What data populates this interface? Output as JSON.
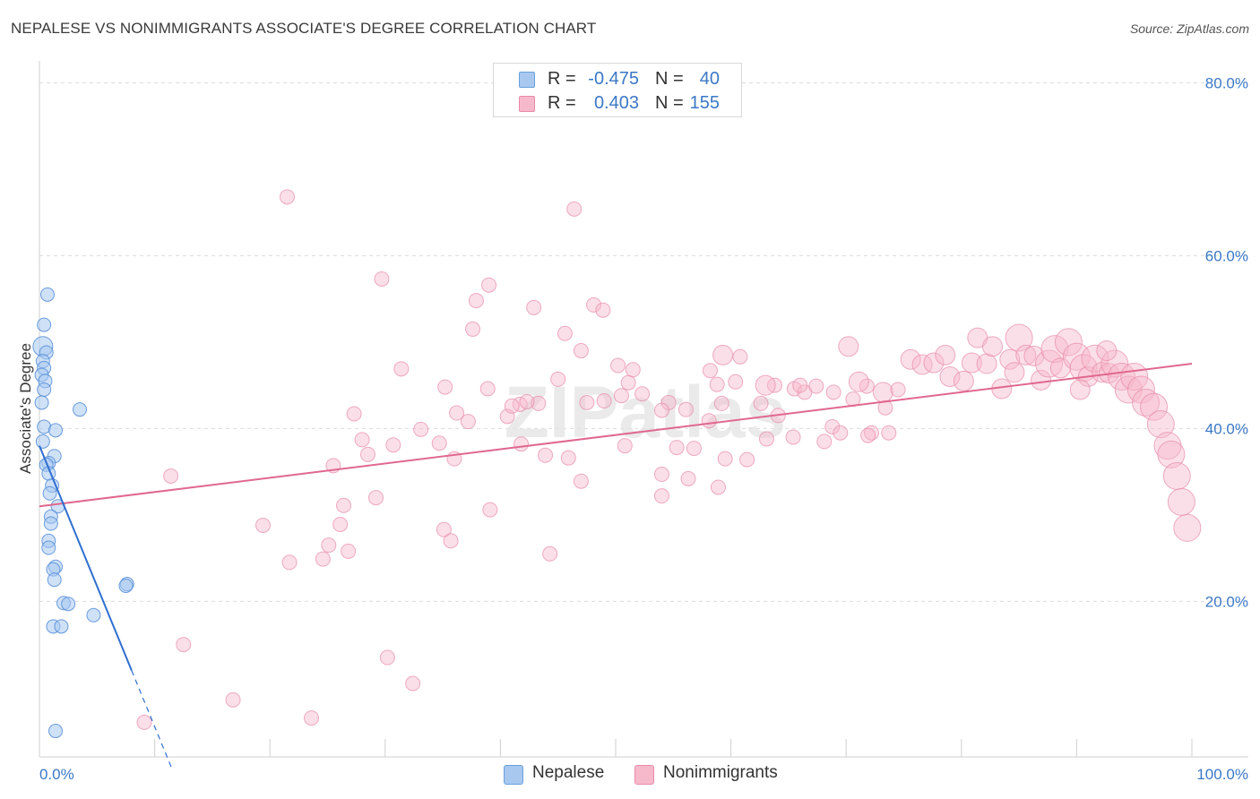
{
  "title": "NEPALESE VS NONIMMIGRANTS ASSOCIATE'S DEGREE CORRELATION CHART",
  "source": "Source: ZipAtlas.com",
  "watermark": "ZIPatlas",
  "legend": {
    "rows": [
      {
        "r_label": "R =",
        "r_value": "-0.475",
        "n_label": "N =",
        "n_value": "40",
        "color": "#a8c8f0",
        "border": "#6a9fdc"
      },
      {
        "r_label": "R =",
        "r_value": "0.403",
        "n_label": "N =",
        "n_value": "155",
        "color": "#f6b9cb",
        "border": "#e98aa8"
      }
    ]
  },
  "bottom_legend": {
    "nepalese": "Nepalese",
    "nonimmigrants": "Nonimmigrants"
  },
  "colors": {
    "nepalese_fill": "#a8c8f0",
    "nepalese_stroke": "#4a86d6",
    "nepalese_line": "#2f6fd0",
    "non_fill": "#f6b9cb",
    "non_stroke": "#e78aa8",
    "non_line": "#e0688f",
    "axis_label": "#3b78c6",
    "grid": "#dcdcdc"
  },
  "chart_data": {
    "type": "scatter",
    "title": "NEPALESE VS NONIMMIGRANTS ASSOCIATE'S DEGREE CORRELATION CHART",
    "xlabel": "",
    "ylabel": "Associate's Degree",
    "x_tick_labels": [
      "0.0%",
      "100.0%"
    ],
    "y_tick_labels": [
      "20.0%",
      "40.0%",
      "60.0%",
      "80.0%"
    ],
    "xlim": [
      0,
      100
    ],
    "ylim": [
      2,
      82
    ],
    "grid": true,
    "legend_position": "top-center",
    "series": [
      {
        "name": "Nepalese",
        "r": -0.475,
        "n": 40,
        "trend": {
          "x0": 0.0,
          "y0": 38.0,
          "x1": 8.0,
          "y1": 12.0,
          "dashed_to_x": 11.5
        },
        "points": [
          [
            0.7,
            55.5,
            1
          ],
          [
            0.4,
            52.0,
            1
          ],
          [
            0.3,
            49.5,
            2
          ],
          [
            0.6,
            48.8,
            1
          ],
          [
            0.3,
            47.8,
            1
          ],
          [
            0.4,
            47.0,
            1
          ],
          [
            0.2,
            46.2,
            1
          ],
          [
            0.5,
            45.5,
            1
          ],
          [
            0.4,
            44.5,
            1
          ],
          [
            0.2,
            43.0,
            1
          ],
          [
            3.5,
            42.2,
            1
          ],
          [
            0.4,
            40.2,
            1
          ],
          [
            1.4,
            39.8,
            1
          ],
          [
            0.3,
            38.5,
            1
          ],
          [
            1.3,
            36.8,
            1
          ],
          [
            0.8,
            36.0,
            1
          ],
          [
            0.6,
            35.8,
            1
          ],
          [
            0.8,
            34.8,
            1
          ],
          [
            1.1,
            33.4,
            1
          ],
          [
            0.9,
            32.5,
            1
          ],
          [
            1.6,
            31.0,
            1
          ],
          [
            1.0,
            29.8,
            1
          ],
          [
            1.0,
            29.0,
            1
          ],
          [
            0.8,
            27.0,
            1
          ],
          [
            0.8,
            26.2,
            1
          ],
          [
            1.4,
            24.0,
            1
          ],
          [
            1.2,
            23.7,
            1
          ],
          [
            1.3,
            22.5,
            1
          ],
          [
            7.6,
            22.0,
            1
          ],
          [
            7.5,
            21.8,
            1
          ],
          [
            2.1,
            19.8,
            1
          ],
          [
            2.5,
            19.7,
            1
          ],
          [
            4.7,
            18.4,
            1
          ],
          [
            1.2,
            17.1,
            1
          ],
          [
            1.9,
            17.1,
            1
          ],
          [
            1.4,
            5.0,
            1
          ]
        ]
      },
      {
        "name": "Nonimmigrants",
        "r": 0.403,
        "n": 155,
        "trend": {
          "x0": 0.0,
          "y0": 31.0,
          "x1": 100.0,
          "y1": 47.5
        },
        "points": [
          [
            21.5,
            66.8,
            1
          ],
          [
            46.4,
            65.4,
            1
          ],
          [
            29.7,
            57.3,
            1
          ],
          [
            39.0,
            56.6,
            1
          ],
          [
            37.9,
            54.8,
            1
          ],
          [
            42.9,
            54.0,
            1
          ],
          [
            48.1,
            54.3,
            1
          ],
          [
            48.9,
            53.7,
            1
          ],
          [
            37.6,
            51.5,
            1
          ],
          [
            45.6,
            51.0,
            1
          ],
          [
            47.0,
            49.0,
            1
          ],
          [
            60.8,
            48.3,
            1
          ],
          [
            50.2,
            47.3,
            1
          ],
          [
            51.5,
            46.8,
            1
          ],
          [
            58.2,
            46.7,
            1
          ],
          [
            31.4,
            46.9,
            1
          ],
          [
            45.0,
            45.7,
            1
          ],
          [
            60.4,
            45.4,
            1
          ],
          [
            58.8,
            45.1,
            1
          ],
          [
            35.2,
            44.8,
            1
          ],
          [
            51.1,
            45.3,
            1
          ],
          [
            52.3,
            44.0,
            1
          ],
          [
            50.5,
            43.8,
            1
          ],
          [
            38.9,
            44.6,
            1
          ],
          [
            54.6,
            43.0,
            1
          ],
          [
            41.7,
            42.8,
            1
          ],
          [
            43.3,
            42.9,
            1
          ],
          [
            47.5,
            43.0,
            1
          ],
          [
            49.0,
            43.2,
            1
          ],
          [
            56.1,
            42.2,
            1
          ],
          [
            59.2,
            42.9,
            1
          ],
          [
            62.6,
            42.9,
            1
          ],
          [
            63.8,
            45.0,
            1
          ],
          [
            65.5,
            44.6,
            1
          ],
          [
            66.4,
            44.2,
            1
          ],
          [
            67.4,
            44.9,
            1
          ],
          [
            68.9,
            44.2,
            1
          ],
          [
            70.6,
            43.4,
            1
          ],
          [
            71.8,
            44.9,
            1
          ],
          [
            73.4,
            42.4,
            1
          ],
          [
            27.3,
            41.7,
            1
          ],
          [
            36.2,
            41.8,
            1
          ],
          [
            40.6,
            41.4,
            1
          ],
          [
            41.0,
            42.6,
            1
          ],
          [
            42.3,
            43.1,
            1
          ],
          [
            54.0,
            42.1,
            1
          ],
          [
            58.1,
            40.9,
            1
          ],
          [
            64.1,
            41.5,
            1
          ],
          [
            33.1,
            39.9,
            1
          ],
          [
            37.2,
            40.8,
            1
          ],
          [
            68.8,
            40.2,
            1
          ],
          [
            69.5,
            39.5,
            1
          ],
          [
            72.2,
            39.5,
            1
          ],
          [
            73.7,
            39.5,
            1
          ],
          [
            28.0,
            38.7,
            1
          ],
          [
            30.7,
            38.1,
            1
          ],
          [
            34.7,
            38.3,
            1
          ],
          [
            41.8,
            38.2,
            1
          ],
          [
            50.8,
            38.0,
            1
          ],
          [
            55.3,
            37.8,
            1
          ],
          [
            56.8,
            37.7,
            1
          ],
          [
            63.1,
            38.8,
            1
          ],
          [
            65.4,
            39.0,
            1
          ],
          [
            68.1,
            38.5,
            1
          ],
          [
            71.9,
            39.2,
            1
          ],
          [
            28.5,
            37.0,
            1
          ],
          [
            36.0,
            36.5,
            1
          ],
          [
            43.9,
            36.9,
            1
          ],
          [
            45.9,
            36.6,
            1
          ],
          [
            59.5,
            36.5,
            1
          ],
          [
            61.4,
            36.4,
            1
          ],
          [
            25.5,
            35.7,
            1
          ],
          [
            11.4,
            34.5,
            1
          ],
          [
            54.0,
            34.7,
            1
          ],
          [
            56.3,
            34.2,
            1
          ],
          [
            47.0,
            33.9,
            1
          ],
          [
            58.9,
            33.2,
            1
          ],
          [
            54.0,
            32.2,
            1
          ],
          [
            29.2,
            32.0,
            1
          ],
          [
            26.4,
            31.1,
            1
          ],
          [
            39.1,
            30.6,
            1
          ],
          [
            19.4,
            28.8,
            1
          ],
          [
            26.1,
            28.9,
            1
          ],
          [
            35.1,
            28.3,
            1
          ],
          [
            25.1,
            26.5,
            1
          ],
          [
            35.7,
            27.0,
            1
          ],
          [
            26.8,
            25.8,
            1
          ],
          [
            44.3,
            25.5,
            1
          ],
          [
            21.7,
            24.5,
            1
          ],
          [
            24.6,
            24.9,
            1
          ],
          [
            12.5,
            15.0,
            1
          ],
          [
            30.2,
            13.5,
            1
          ],
          [
            32.4,
            10.5,
            1
          ],
          [
            16.8,
            8.6,
            1
          ],
          [
            9.1,
            6.0,
            1
          ],
          [
            23.6,
            6.5,
            1
          ],
          [
            59.3,
            48.5,
            2
          ],
          [
            63.0,
            45.0,
            2
          ],
          [
            66.0,
            45.0,
            1
          ],
          [
            70.2,
            49.5,
            2
          ],
          [
            71.1,
            45.4,
            2
          ],
          [
            73.2,
            44.2,
            2
          ],
          [
            74.5,
            44.5,
            1
          ],
          [
            75.6,
            48.0,
            2
          ],
          [
            76.6,
            47.4,
            2
          ],
          [
            77.6,
            47.6,
            2
          ],
          [
            78.6,
            48.5,
            2
          ],
          [
            79.0,
            46.0,
            2
          ],
          [
            80.2,
            45.5,
            2
          ],
          [
            80.9,
            47.6,
            2
          ],
          [
            81.4,
            50.5,
            2
          ],
          [
            82.2,
            47.5,
            2
          ],
          [
            82.7,
            49.5,
            2
          ],
          [
            83.5,
            44.6,
            2
          ],
          [
            84.2,
            48.0,
            2
          ],
          [
            84.6,
            46.5,
            2
          ],
          [
            85.0,
            50.5,
            3
          ],
          [
            85.6,
            48.5,
            2
          ],
          [
            86.3,
            48.4,
            2
          ],
          [
            86.9,
            45.6,
            2
          ],
          [
            87.6,
            47.5,
            3
          ],
          [
            88.1,
            49.2,
            3
          ],
          [
            88.6,
            47.0,
            2
          ],
          [
            89.3,
            50.0,
            3
          ],
          [
            90.0,
            48.3,
            3
          ],
          [
            90.6,
            47.0,
            3
          ],
          [
            91.0,
            46.0,
            2
          ],
          [
            91.6,
            48.1,
            3
          ],
          [
            92.2,
            46.5,
            2
          ],
          [
            92.8,
            46.4,
            2
          ],
          [
            93.3,
            47.5,
            3
          ],
          [
            93.9,
            46.0,
            3
          ],
          [
            94.5,
            44.5,
            3
          ],
          [
            95.0,
            46.0,
            3
          ],
          [
            95.6,
            44.5,
            3
          ],
          [
            96.0,
            43.0,
            3
          ],
          [
            96.7,
            42.5,
            3
          ],
          [
            97.3,
            40.5,
            3
          ],
          [
            97.9,
            38.0,
            3
          ],
          [
            98.2,
            37.0,
            3
          ],
          [
            98.7,
            34.5,
            3
          ],
          [
            99.1,
            31.5,
            3
          ],
          [
            99.6,
            28.5,
            3
          ],
          [
            92.6,
            49.0,
            2
          ],
          [
            90.3,
            44.5,
            2
          ]
        ]
      }
    ]
  }
}
